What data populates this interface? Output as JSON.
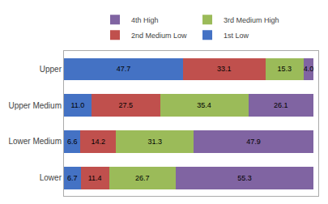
{
  "chart_data": {
    "type": "bar",
    "orientation": "horizontal",
    "stacked": true,
    "categories": [
      "Upper",
      "Upper Medium",
      "Lower Medium",
      "Lower"
    ],
    "series": [
      {
        "name": "1st Low",
        "color": "#4472C4",
        "values": [
          47.7,
          11.0,
          6.6,
          6.7
        ],
        "value_labels": [
          "47.7",
          "11.0",
          "6.6",
          "6.7"
        ]
      },
      {
        "name": "2nd Medium Low",
        "color": "#C0504D",
        "values": [
          33.1,
          27.5,
          14.2,
          11.4
        ],
        "value_labels": [
          "33.1",
          "27.5",
          "14.2",
          "11.4"
        ]
      },
      {
        "name": "3rd Medium High",
        "color": "#9BBB59",
        "values": [
          15.3,
          35.4,
          31.3,
          26.7
        ],
        "value_labels": [
          "15.3",
          "35.4",
          "31.3",
          "26.7"
        ]
      },
      {
        "name": "4th High",
        "color": "#8064A2",
        "values": [
          4.0,
          26.1,
          47.9,
          55.3
        ],
        "value_labels": [
          "4.0",
          "26.1",
          "47.9",
          "55.3"
        ]
      }
    ],
    "xlim": [
      0,
      102
    ],
    "tick_labels": "y",
    "data_labels": true,
    "legend": "top",
    "grid": false
  }
}
